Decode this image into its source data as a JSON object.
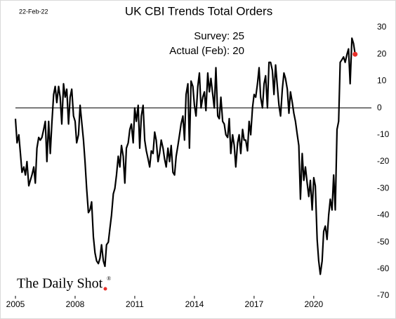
{
  "chart_data": {
    "type": "line",
    "title": "UK CBI Trends Total Orders",
    "date_label": "22-Feb-22",
    "annotations": [
      "Survey:  25",
      "Actual (Feb):  20"
    ],
    "source": "The Daily Shot",
    "source_mark": "®",
    "color": "#000000",
    "highlight_color": "#e8302a",
    "zero_line": true,
    "y_axis_side": "right",
    "xlim": [
      2005,
      2022.9
    ],
    "xticks": [
      2005,
      2008,
      2011,
      2014,
      2017,
      2020
    ],
    "ylim": [
      -70,
      30
    ],
    "yticks": [
      30,
      20,
      10,
      0,
      -10,
      -20,
      -30,
      -40,
      -50,
      -60,
      -70
    ],
    "x": [
      2005.0,
      2005.08,
      2005.17,
      2005.25,
      2005.33,
      2005.42,
      2005.5,
      2005.58,
      2005.67,
      2005.75,
      2005.83,
      2005.92,
      2006.0,
      2006.08,
      2006.17,
      2006.25,
      2006.33,
      2006.42,
      2006.5,
      2006.58,
      2006.67,
      2006.75,
      2006.83,
      2006.92,
      2007.0,
      2007.08,
      2007.17,
      2007.25,
      2007.33,
      2007.42,
      2007.5,
      2007.58,
      2007.67,
      2007.75,
      2007.83,
      2007.92,
      2008.0,
      2008.08,
      2008.17,
      2008.25,
      2008.33,
      2008.42,
      2008.5,
      2008.58,
      2008.67,
      2008.75,
      2008.83,
      2008.92,
      2009.0,
      2009.08,
      2009.17,
      2009.25,
      2009.33,
      2009.42,
      2009.5,
      2009.58,
      2009.67,
      2009.75,
      2009.83,
      2009.92,
      2010.0,
      2010.08,
      2010.17,
      2010.25,
      2010.33,
      2010.42,
      2010.5,
      2010.58,
      2010.67,
      2010.75,
      2010.83,
      2010.92,
      2011.0,
      2011.08,
      2011.17,
      2011.25,
      2011.33,
      2011.42,
      2011.5,
      2011.58,
      2011.67,
      2011.75,
      2011.83,
      2011.92,
      2012.0,
      2012.08,
      2012.17,
      2012.25,
      2012.33,
      2012.42,
      2012.5,
      2012.58,
      2012.67,
      2012.75,
      2012.83,
      2012.92,
      2013.0,
      2013.08,
      2013.17,
      2013.25,
      2013.33,
      2013.42,
      2013.5,
      2013.58,
      2013.67,
      2013.75,
      2013.83,
      2013.92,
      2014.0,
      2014.08,
      2014.17,
      2014.25,
      2014.33,
      2014.42,
      2014.5,
      2014.58,
      2014.67,
      2014.75,
      2014.83,
      2014.92,
      2015.0,
      2015.08,
      2015.17,
      2015.25,
      2015.33,
      2015.42,
      2015.5,
      2015.58,
      2015.67,
      2015.75,
      2015.83,
      2015.92,
      2016.0,
      2016.08,
      2016.17,
      2016.25,
      2016.33,
      2016.42,
      2016.5,
      2016.58,
      2016.67,
      2016.75,
      2016.83,
      2016.92,
      2017.0,
      2017.08,
      2017.17,
      2017.25,
      2017.33,
      2017.42,
      2017.5,
      2017.58,
      2017.67,
      2017.75,
      2017.83,
      2017.92,
      2018.0,
      2018.08,
      2018.17,
      2018.25,
      2018.33,
      2018.42,
      2018.5,
      2018.58,
      2018.67,
      2018.75,
      2018.83,
      2018.92,
      2019.0,
      2019.08,
      2019.17,
      2019.25,
      2019.33,
      2019.42,
      2019.5,
      2019.58,
      2019.67,
      2019.75,
      2019.83,
      2019.92,
      2020.0,
      2020.08,
      2020.17,
      2020.25,
      2020.33,
      2020.42,
      2020.5,
      2020.58,
      2020.67,
      2020.75,
      2020.83,
      2020.92,
      2021.0,
      2021.08,
      2021.17,
      2021.25,
      2021.33,
      2021.42,
      2021.5,
      2021.58,
      2021.67,
      2021.75,
      2021.83,
      2021.92,
      2022.0,
      2022.08
    ],
    "values": [
      -4,
      -13,
      -10,
      -17,
      -24,
      -22,
      -25,
      -20,
      -29,
      -27,
      -25,
      -22,
      -28,
      -15,
      -11,
      -12,
      -11,
      -8,
      -5,
      -20,
      -5,
      -17,
      -6,
      5,
      8,
      2,
      8,
      4,
      -6,
      9,
      4,
      7,
      -6,
      4,
      7,
      -3,
      -5,
      -13,
      -10,
      1,
      -5,
      -12,
      -20,
      -30,
      -39,
      -38,
      -35,
      -48,
      -54,
      -57,
      -58,
      -56,
      -51,
      -57,
      -59,
      -51,
      -50,
      -45,
      -40,
      -32,
      -30,
      -25,
      -18,
      -22,
      -14,
      -18,
      -28,
      -15,
      -13,
      -8,
      -6,
      -13,
      0,
      -5,
      1,
      -15,
      -3,
      1,
      -12,
      -16,
      -19,
      -22,
      -16,
      -17,
      -9,
      -12,
      -20,
      -17,
      -12,
      -15,
      -19,
      -22,
      -15,
      -20,
      -14,
      -24,
      -25,
      -18,
      -14,
      -10,
      -6,
      -3,
      -12,
      5,
      9,
      -15,
      10,
      8,
      1,
      -3,
      8,
      13,
      0,
      4,
      6,
      -1,
      13,
      6,
      11,
      5,
      0,
      15,
      -3,
      -4,
      4,
      -5,
      -6,
      -10,
      -11,
      -4,
      -17,
      -10,
      -14,
      -22,
      -13,
      -10,
      -17,
      -8,
      -12,
      -12,
      -16,
      -5,
      -10,
      0,
      5,
      4,
      9,
      15,
      4,
      0,
      9,
      12,
      0,
      17,
      17,
      14,
      5,
      16,
      8,
      1,
      -3,
      7,
      13,
      11,
      7,
      -2,
      6,
      2,
      -2,
      -5,
      -10,
      -14,
      -34,
      -17,
      -27,
      -22,
      -28,
      -33,
      -27,
      -38,
      -26,
      -29,
      -49,
      -57,
      -62,
      -57,
      -46,
      -44,
      -49,
      -40,
      -34,
      -38,
      -25,
      -38,
      -8,
      -5,
      17,
      18,
      19,
      17,
      20,
      22,
      9,
      26,
      24,
      20
    ]
  }
}
